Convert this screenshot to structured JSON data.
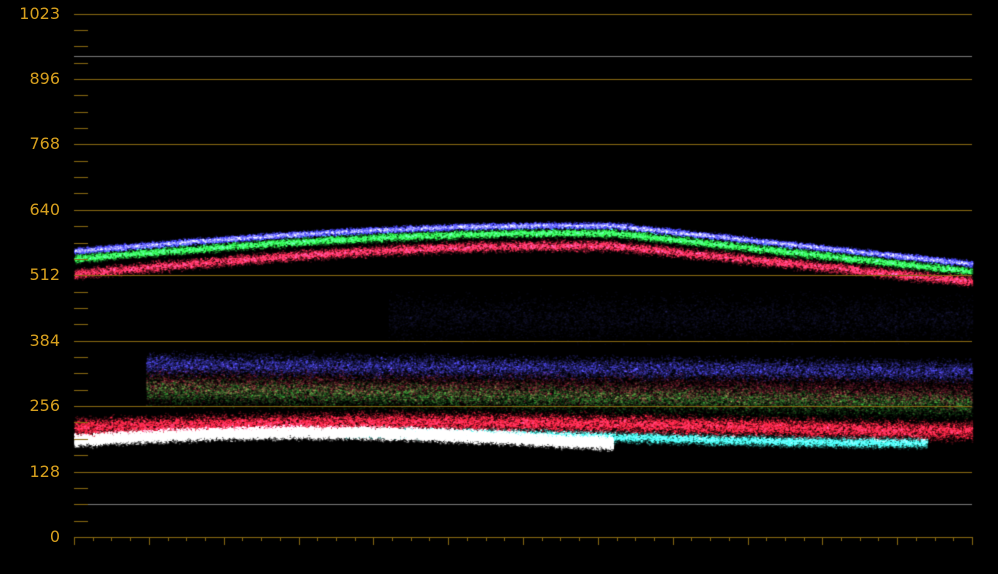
{
  "scope": {
    "type": "waveform",
    "y_axis_labels": [
      "1023",
      "896",
      "768",
      "640",
      "512",
      "384",
      "256",
      "128",
      "0"
    ],
    "y_range": [
      0,
      1023
    ],
    "reference_lines": [
      940,
      64
    ],
    "colors": {
      "graticule": "#8a6a12",
      "label": "#d7a01e",
      "reference": "#7a7a7a",
      "background": "#000000"
    }
  }
}
